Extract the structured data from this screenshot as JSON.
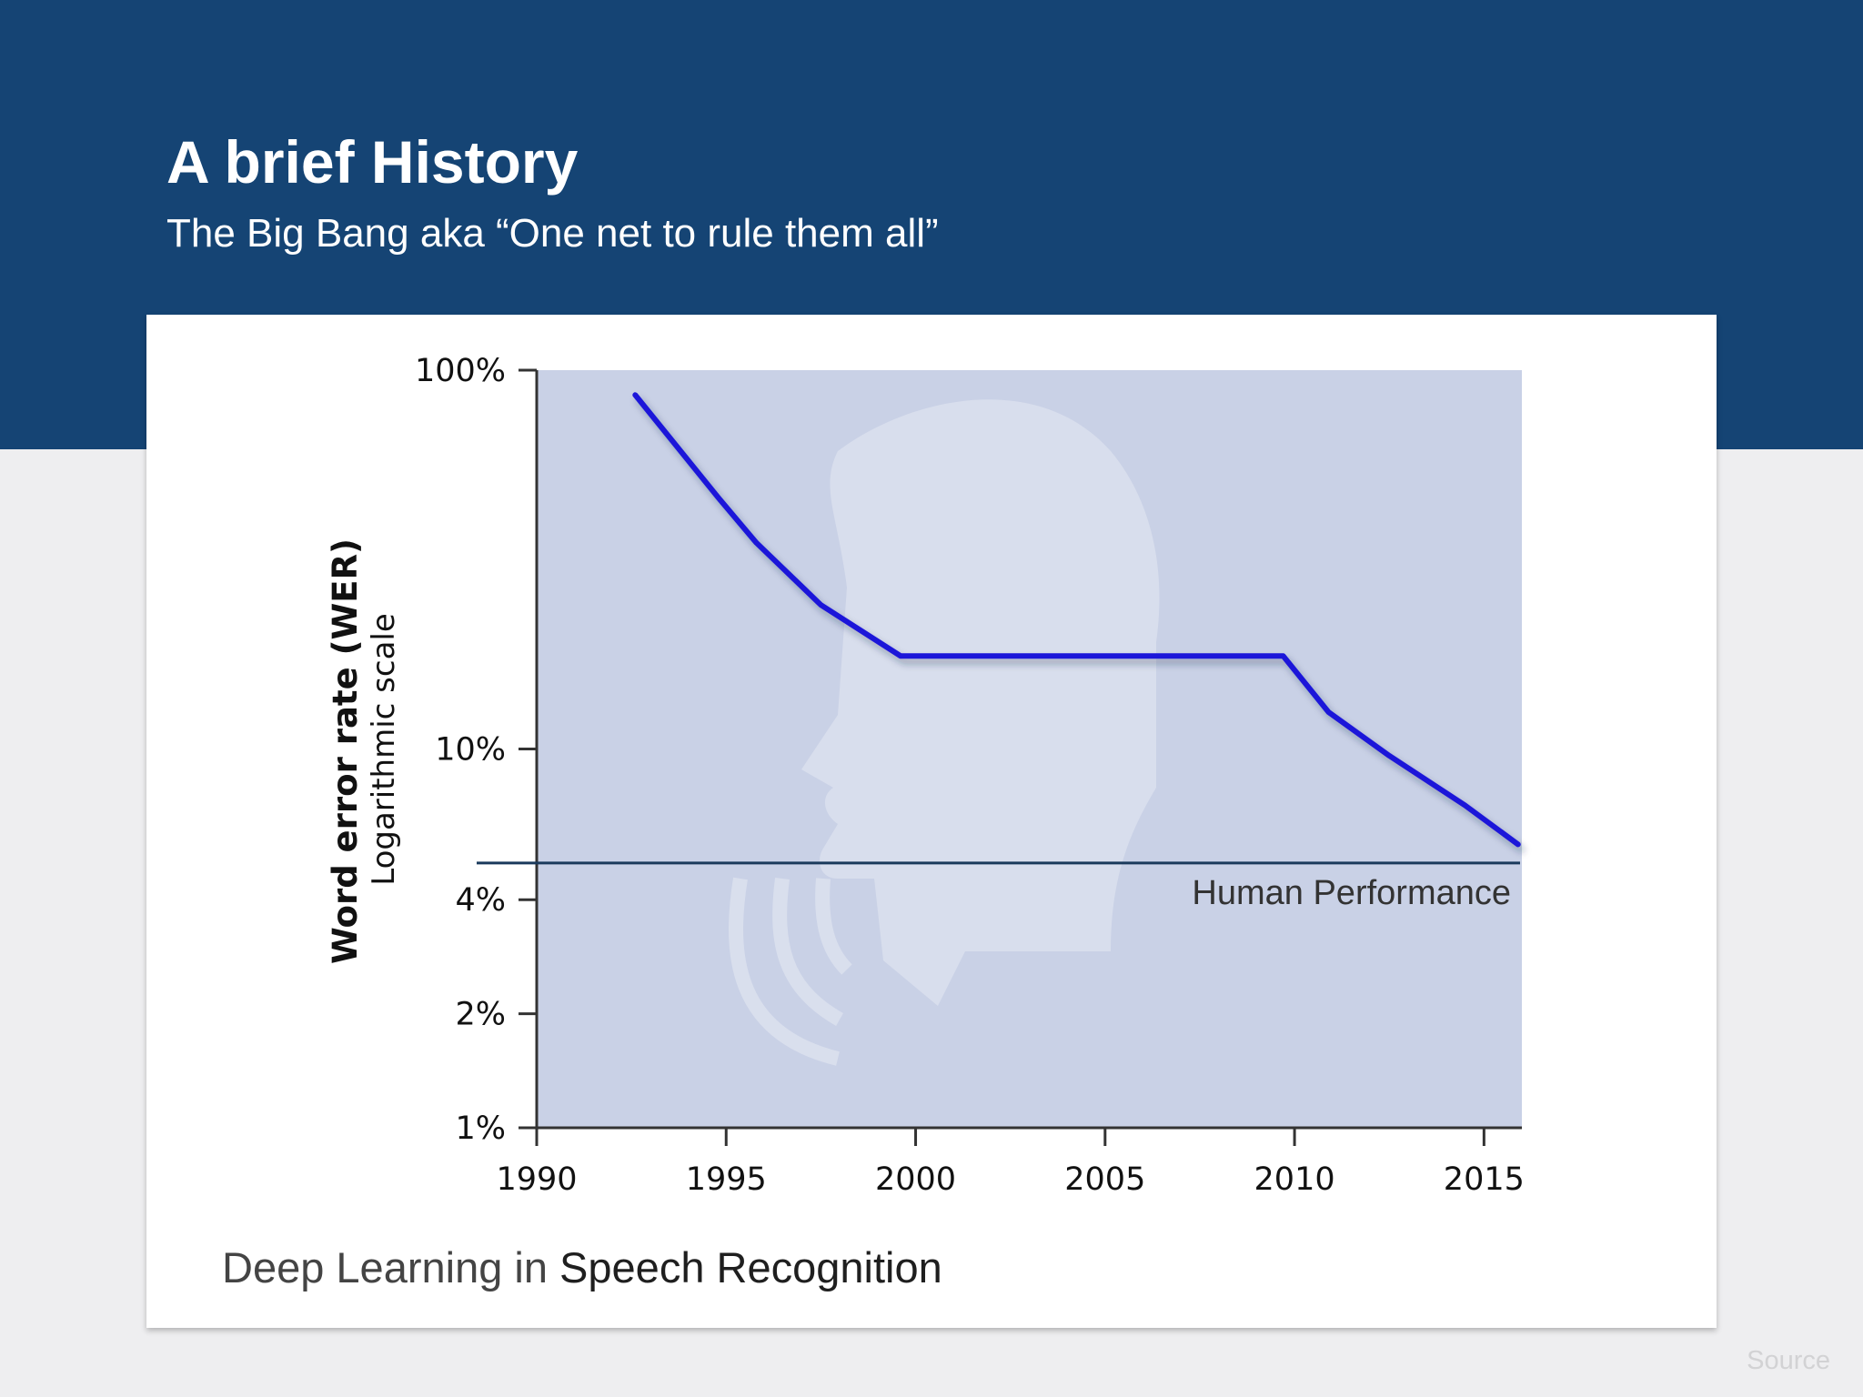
{
  "slide": {
    "title": "A brief History",
    "subtitle": "The Big Bang aka “One net to rule them all”",
    "caption_prefix": "Deep Learning in ",
    "caption_emphasis": "Speech Recognition",
    "source_label": "Source"
  },
  "colors": {
    "header": "#154474",
    "plot_background": "#c9d1e6",
    "series_line": "#1a13d9",
    "reference_line": "#1a3a5c"
  },
  "decoration": {
    "background_icon": "speaking-head-silhouette-icon"
  },
  "chart_data": {
    "type": "line",
    "ylabel": "Word error rate (WER)",
    "ylabel_secondary": "Logarithmic scale",
    "y_scale": "log",
    "xlim": [
      1990,
      2016
    ],
    "ylim": [
      1,
      100
    ],
    "x_ticks": [
      1990,
      1995,
      2000,
      2005,
      2010,
      2015
    ],
    "x_tick_labels": [
      "1990",
      "1995",
      "2000",
      "2005",
      "2010",
      "2015"
    ],
    "y_ticks": [
      1,
      2,
      4,
      10,
      100
    ],
    "y_tick_labels": [
      "1%",
      "2%",
      "4%",
      "10%",
      "100%"
    ],
    "grid": false,
    "series": [
      {
        "x": [
          1992.6,
          1994.8,
          1995.8,
          1997.5,
          1999.6,
          2009.7,
          2010.9,
          2012.5,
          2014.5,
          2015.9
        ],
        "y": [
          86,
          46,
          35,
          24,
          17.6,
          17.6,
          12.5,
          9.6,
          7.1,
          5.6
        ]
      }
    ],
    "reference_lines": [
      {
        "label": "Human Performance",
        "y": 5
      }
    ]
  }
}
